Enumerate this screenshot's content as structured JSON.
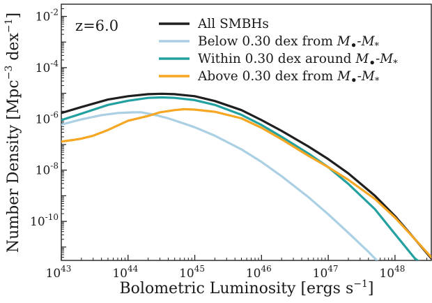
{
  "chart_data": {
    "type": "line",
    "annotation": "z=6.0",
    "xlabel_main": "Bolometric Luminosity [ergs s",
    "xlabel_sup": "−1",
    "xlabel_end": "]",
    "ylabel_main": "Number Density [Mpc",
    "ylabel_sup1": "−3",
    "ylabel_mid": " dex",
    "ylabel_sup2": "−1",
    "ylabel_end": "]",
    "x_scale": "log",
    "y_scale": "log",
    "xlim": [
      1e+43,
      3.5e+48
    ],
    "ylim": [
      3e-12,
      0.03
    ],
    "grid": false,
    "legend_position": "top-center",
    "x_ticks": [
      {
        "value": 1e+43,
        "mant": "10",
        "exp": "43"
      },
      {
        "value": 1e+44,
        "mant": "10",
        "exp": "44"
      },
      {
        "value": 1e+45,
        "mant": "10",
        "exp": "45"
      },
      {
        "value": 1e+46,
        "mant": "10",
        "exp": "46"
      },
      {
        "value": 1e+47,
        "mant": "10",
        "exp": "47"
      },
      {
        "value": 1e+48,
        "mant": "10",
        "exp": "48"
      }
    ],
    "y_ticks": [
      {
        "value": 0.01,
        "mant": "10",
        "exp": "-2"
      },
      {
        "value": 0.0001,
        "mant": "10",
        "exp": "-4"
      },
      {
        "value": 1e-06,
        "mant": "10",
        "exp": "-6"
      },
      {
        "value": 1e-08,
        "mant": "10",
        "exp": "-8"
      },
      {
        "value": 1e-10,
        "mant": "10",
        "exp": "-10"
      }
    ],
    "series": [
      {
        "name": "All SMBHs",
        "color": "#1f1f1f",
        "points": [
          [
            1e+43,
            1.7e-06
          ],
          [
            2e+43,
            2.9e-06
          ],
          [
            5e+43,
            5.7e-06
          ],
          [
            1e+44,
            7.7e-06
          ],
          [
            2e+44,
            9.2e-06
          ],
          [
            3.2e+44,
            9.6e-06
          ],
          [
            5e+44,
            9.2e-06
          ],
          [
            1e+45,
            7.7e-06
          ],
          [
            2e+45,
            5e-06
          ],
          [
            5e+45,
            2.2e-06
          ],
          [
            1e+46,
            9e-07
          ],
          [
            2e+46,
            3.4e-07
          ],
          [
            5e+46,
            8.5e-08
          ],
          [
            1e+47,
            2.7e-08
          ],
          [
            2e+47,
            7.5e-09
          ],
          [
            5e+47,
            1e-09
          ],
          [
            1e+48,
            1.6e-10
          ],
          [
            2e+48,
            2e-11
          ],
          [
            3.5e+48,
            3.6e-12
          ]
        ]
      },
      {
        "name_prefix": "Below 0.30 dex from ",
        "name_m1": "M",
        "name_m1_sub": "•",
        "name_dash": "-",
        "name_m2": "M",
        "name_m2_sub": "*",
        "color": "#abcfe3",
        "points": [
          [
            1e+43,
            6e-07
          ],
          [
            2e+43,
            9.6e-07
          ],
          [
            4e+43,
            1.4e-06
          ],
          [
            7e+43,
            1.7e-06
          ],
          [
            1.2e+44,
            1.8e-06
          ],
          [
            1.6e+44,
            1.8e-06
          ],
          [
            2.5e+44,
            1.45e-06
          ],
          [
            4e+44,
            1.05e-06
          ],
          [
            7e+44,
            6.5e-07
          ],
          [
            1e+45,
            4.7e-07
          ],
          [
            2e+45,
            2.2e-07
          ],
          [
            5e+45,
            6.5e-08
          ],
          [
            1e+46,
            2.1e-08
          ],
          [
            2e+46,
            5.8e-09
          ],
          [
            5e+46,
            9e-10
          ],
          [
            1e+47,
            1.9e-10
          ],
          [
            2e+47,
            3.6e-11
          ],
          [
            4e+47,
            6.5e-12
          ],
          [
            5.5e+47,
            2.8e-12
          ]
        ]
      },
      {
        "name_prefix": "Within 0.30 dex around ",
        "name_m1": "M",
        "name_m1_sub": "•",
        "name_dash": "-",
        "name_m2": "M",
        "name_m2_sub": "*",
        "color": "#22a1a0",
        "points": [
          [
            1e+43,
            9e-07
          ],
          [
            2e+43,
            1.6e-06
          ],
          [
            5e+43,
            3.5e-06
          ],
          [
            1e+44,
            5.1e-06
          ],
          [
            2e+44,
            6.6e-06
          ],
          [
            3.2e+44,
            6.9e-06
          ],
          [
            5e+44,
            6.6e-06
          ],
          [
            1e+45,
            5.4e-06
          ],
          [
            2e+45,
            3.5e-06
          ],
          [
            5e+45,
            1.45e-06
          ],
          [
            1e+46,
            5.8e-07
          ],
          [
            2e+46,
            2e-07
          ],
          [
            5e+46,
            4.5e-08
          ],
          [
            1e+47,
            1.3e-08
          ],
          [
            2e+47,
            2.9e-09
          ],
          [
            5e+47,
            3e-10
          ],
          [
            1e+48,
            3.2e-11
          ],
          [
            2e+48,
            3.5e-12
          ],
          [
            2.6e+48,
            2.2e-12
          ]
        ]
      },
      {
        "name_prefix": "Above 0.30 dex from ",
        "name_m1": "M",
        "name_m1_sub": "•",
        "name_dash": "-",
        "name_m2": "M",
        "name_m2_sub": "*",
        "color": "#f5a623",
        "points": [
          [
            1e+43,
            1.3e-07
          ],
          [
            1.5e+43,
            1.5e-07
          ],
          [
            2e+43,
            1.7e-07
          ],
          [
            3e+43,
            2.2e-07
          ],
          [
            5e+43,
            3.7e-07
          ],
          [
            8e+43,
            6.5e-07
          ],
          [
            1e+44,
            8.5e-07
          ],
          [
            2e+44,
            1.3e-06
          ],
          [
            3e+44,
            1.8e-06
          ],
          [
            5e+44,
            2.2e-06
          ],
          [
            7e+44,
            2.4e-06
          ],
          [
            1e+45,
            2.3e-06
          ],
          [
            2e+45,
            1.9e-06
          ],
          [
            5e+45,
            1.05e-06
          ],
          [
            1e+46,
            4.5e-07
          ],
          [
            2e+46,
            1.6e-07
          ],
          [
            5e+46,
            3.7e-08
          ],
          [
            1e+47,
            1.3e-08
          ],
          [
            2e+47,
            4.2e-09
          ],
          [
            5e+47,
            7.5e-10
          ],
          [
            1e+48,
            1.4e-10
          ],
          [
            2e+48,
            2e-11
          ],
          [
            3.5e+48,
            4e-12
          ]
        ]
      }
    ]
  }
}
